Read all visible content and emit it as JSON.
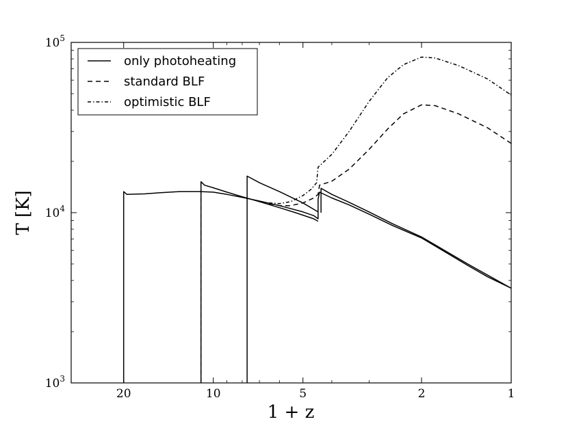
{
  "chart_data": {
    "type": "line",
    "title": "",
    "xlabel": "1 + z",
    "ylabel": "T [K]",
    "x_scale": "log",
    "y_scale": "log",
    "x_inverted": true,
    "xlim": [
      30,
      1
    ],
    "ylim": [
      1000,
      100000
    ],
    "grid": false,
    "legend_position": "top-left",
    "xticks": [
      20,
      10,
      5,
      2,
      1
    ],
    "yticks": [
      {
        "value": 1000,
        "base": "10",
        "exp": "3"
      },
      {
        "value": 10000,
        "base": "10",
        "exp": "4"
      },
      {
        "value": 100000,
        "base": "10",
        "exp": "5"
      }
    ],
    "series": [
      {
        "name": "only photoheating",
        "style": "solid",
        "segments": [
          [
            [
              20,
              1000
            ],
            [
              20,
              13300
            ],
            [
              19.5,
              12800
            ],
            [
              17,
              12900
            ],
            [
              15,
              13100
            ],
            [
              13,
              13300
            ],
            [
              11,
              13300
            ],
            [
              10,
              13200
            ],
            [
              9,
              12800
            ],
            [
              8,
              12300
            ],
            [
              7,
              11700
            ],
            [
              6,
              11000
            ],
            [
              5,
              10100
            ],
            [
              4.6,
              9600
            ],
            [
              4.45,
              9200
            ],
            [
              4.45,
              12000
            ],
            [
              4.4,
              13200
            ],
            [
              4,
              12200
            ],
            [
              3.5,
              11100
            ],
            [
              3,
              9800
            ],
            [
              2.5,
              8400
            ],
            [
              2,
              7100
            ],
            [
              1.7,
              6000
            ],
            [
              1.4,
              4900
            ],
            [
              1.2,
              4200
            ],
            [
              1,
              3600
            ]
          ],
          [
            [
              11,
              1000
            ],
            [
              11,
              15200
            ],
            [
              10.7,
              14500
            ],
            [
              10,
              14000
            ],
            [
              9,
              13200
            ],
            [
              8,
              12400
            ],
            [
              7,
              11600
            ],
            [
              6,
              10700
            ],
            [
              5.3,
              10000
            ],
            [
              4.6,
              9200
            ],
            [
              4.45,
              8900
            ]
          ],
          [
            [
              7.7,
              1000
            ],
            [
              7.7,
              16400
            ],
            [
              7,
              15000
            ],
            [
              6,
              13300
            ],
            [
              5,
              11400
            ],
            [
              4.45,
              10100
            ]
          ],
          [
            [
              4.35,
              10000
            ],
            [
              4.35,
              13900
            ],
            [
              4,
              12800
            ],
            [
              3.5,
              11500
            ],
            [
              3,
              10100
            ],
            [
              2.5,
              8600
            ],
            [
              2,
              7200
            ],
            [
              1.7,
              6100
            ],
            [
              1.4,
              5000
            ],
            [
              1.2,
              4300
            ],
            [
              1,
              3600
            ]
          ]
        ]
      },
      {
        "name": "standard BLF",
        "style": "dashed",
        "segments": [
          [
            [
              11,
              1000
            ],
            [
              11,
              15200
            ]
          ],
          [
            [
              6.5,
              11300
            ],
            [
              6,
              11000
            ],
            [
              5.5,
              11000
            ],
            [
              5,
              11400
            ],
            [
              4.6,
              12200
            ],
            [
              4.45,
              12800
            ],
            [
              4.4,
              14500
            ],
            [
              4,
              15300
            ],
            [
              3.5,
              18000
            ],
            [
              3,
              23500
            ],
            [
              2.6,
              31000
            ],
            [
              2.3,
              38000
            ],
            [
              2,
              43000
            ],
            [
              1.8,
              42500
            ],
            [
              1.5,
              38000
            ],
            [
              1.2,
              31500
            ],
            [
              1,
              25500
            ]
          ]
        ]
      },
      {
        "name": "optimistic BLF",
        "style": "dashdot",
        "segments": [
          [
            [
              6.5,
              11400
            ],
            [
              6,
              11300
            ],
            [
              5.5,
              11600
            ],
            [
              5,
              12600
            ],
            [
              4.7,
              13700
            ],
            [
              4.5,
              15000
            ],
            [
              4.45,
              18500
            ],
            [
              4,
              22000
            ],
            [
              3.5,
              30000
            ],
            [
              3,
              45000
            ],
            [
              2.6,
              62000
            ],
            [
              2.3,
              74000
            ],
            [
              2,
              82000
            ],
            [
              1.8,
              81000
            ],
            [
              1.5,
              73000
            ],
            [
              1.2,
              61000
            ],
            [
              1,
              49000
            ]
          ]
        ]
      }
    ]
  }
}
